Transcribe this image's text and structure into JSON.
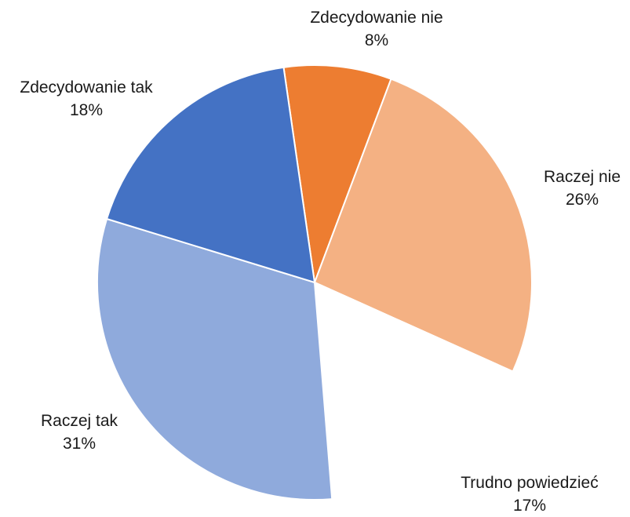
{
  "chart_data": {
    "type": "pie",
    "title": "",
    "slices": [
      {
        "name": "Zdecydowanie nie",
        "value": 8,
        "percent_label": "8%",
        "color": "#ED7D31"
      },
      {
        "name": "Raczej nie",
        "value": 26,
        "percent_label": "26%",
        "color": "#F4B183"
      },
      {
        "name": "Trudno powiedzieć",
        "value": 17,
        "percent_label": "17%",
        "color": "#FFFFFF"
      },
      {
        "name": "Raczej tak",
        "value": 31,
        "percent_label": "31%",
        "color": "#8FAADC"
      },
      {
        "name": "Zdecydowanie tak",
        "value": 18,
        "percent_label": "18%",
        "color": "#4472C4"
      }
    ],
    "start_angle_deg": -8.2,
    "direction": "clockwise",
    "legend": "none",
    "data_labels": "outside",
    "slice_border_color": "#FFFFFF"
  }
}
